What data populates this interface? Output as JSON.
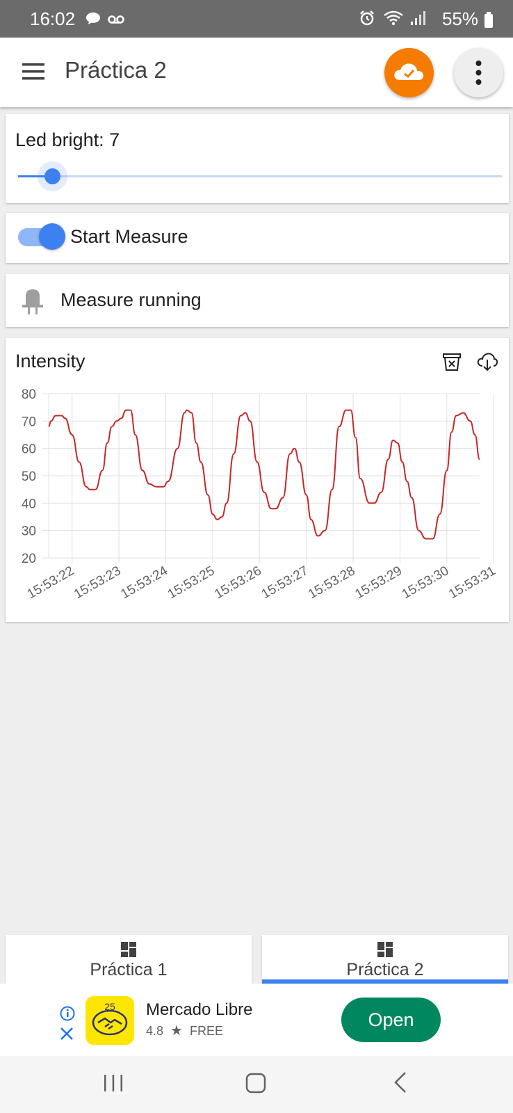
{
  "status_bar": {
    "time": "16:02",
    "battery": "55%",
    "left_icons": [
      "chat-bubble-icon",
      "voicemail-icon"
    ],
    "right_icons": [
      "alarm-icon",
      "wifi-icon",
      "signal-icon",
      "battery-icon"
    ]
  },
  "app_bar": {
    "title": "Práctica 2",
    "cloud_status": "connected",
    "accent_color": "#f57c00"
  },
  "slider": {
    "label_prefix": "Led bright:",
    "value": "7",
    "position_fraction": 0.07
  },
  "switch": {
    "label": "Start Measure",
    "on": true
  },
  "status": {
    "label": "Measure running",
    "icon": "led-icon"
  },
  "chart": {
    "title": "Intensity",
    "actions": [
      "delete-data-icon",
      "cloud-download-icon"
    ]
  },
  "chart_data": {
    "type": "line",
    "title": "Intensity",
    "xlabel": "",
    "ylabel": "",
    "ylim": [
      20,
      80
    ],
    "yticks": [
      20,
      30,
      40,
      50,
      60,
      70,
      80
    ],
    "xlim": [
      0,
      9.2
    ],
    "xticks": [
      "15:53:22",
      "15:53:23",
      "15:53:24",
      "15:53:25",
      "15:53:26",
      "15:53:27",
      "15:53:28",
      "15:53:29",
      "15:53:30",
      "15:53:31"
    ],
    "grid": true,
    "series": [
      {
        "color": "#c62828",
        "x": [
          0,
          0.05,
          0.15,
          0.28,
          0.35,
          0.5,
          0.65,
          0.8,
          0.88,
          1.0,
          1.15,
          1.25,
          1.35,
          1.45,
          1.55,
          1.65,
          1.75,
          1.85,
          2.0,
          2.15,
          2.3,
          2.45,
          2.55,
          2.75,
          2.9,
          2.95,
          3.05,
          3.15,
          3.25,
          3.4,
          3.5,
          3.6,
          3.7,
          3.8,
          3.95,
          4.1,
          4.2,
          4.3,
          4.45,
          4.6,
          4.75,
          4.85,
          5.0,
          5.15,
          5.25,
          5.35,
          5.5,
          5.6,
          5.75,
          5.9,
          6.05,
          6.2,
          6.35,
          6.45,
          6.55,
          6.65,
          6.85,
          6.95,
          7.1,
          7.25,
          7.35,
          7.45,
          7.55,
          7.65,
          7.75,
          7.9,
          8.05,
          8.2,
          8.35,
          8.5,
          8.6,
          8.7,
          8.85,
          9.0,
          9.1,
          9.2
        ],
        "y": [
          68,
          70,
          72,
          72,
          71,
          65,
          55,
          46,
          45,
          45,
          52,
          62,
          68,
          70,
          71,
          74,
          74,
          65,
          52,
          47,
          46,
          46,
          48,
          60,
          73,
          74,
          73,
          62,
          55,
          43,
          36,
          34,
          35,
          40,
          58,
          72,
          73,
          70,
          55,
          44,
          38,
          38,
          42,
          58,
          60,
          55,
          43,
          34,
          28,
          30,
          45,
          68,
          74,
          74,
          64,
          49,
          40,
          40,
          44,
          56,
          63,
          62,
          55,
          48,
          42,
          30,
          27,
          27,
          36,
          52,
          66,
          72,
          73,
          70,
          65,
          56
        ]
      }
    ]
  },
  "tabs": [
    {
      "label": "Práctica 1",
      "active": false
    },
    {
      "label": "Práctica 2",
      "active": true
    }
  ],
  "ad": {
    "app_name": "Mercado Libre",
    "rating": "4.8",
    "star": "★",
    "price": "FREE",
    "cta": "Open",
    "cta_color": "#01875f",
    "logo_color": "#ffe600"
  },
  "nav": [
    "recents-icon",
    "home-icon",
    "back-icon"
  ]
}
